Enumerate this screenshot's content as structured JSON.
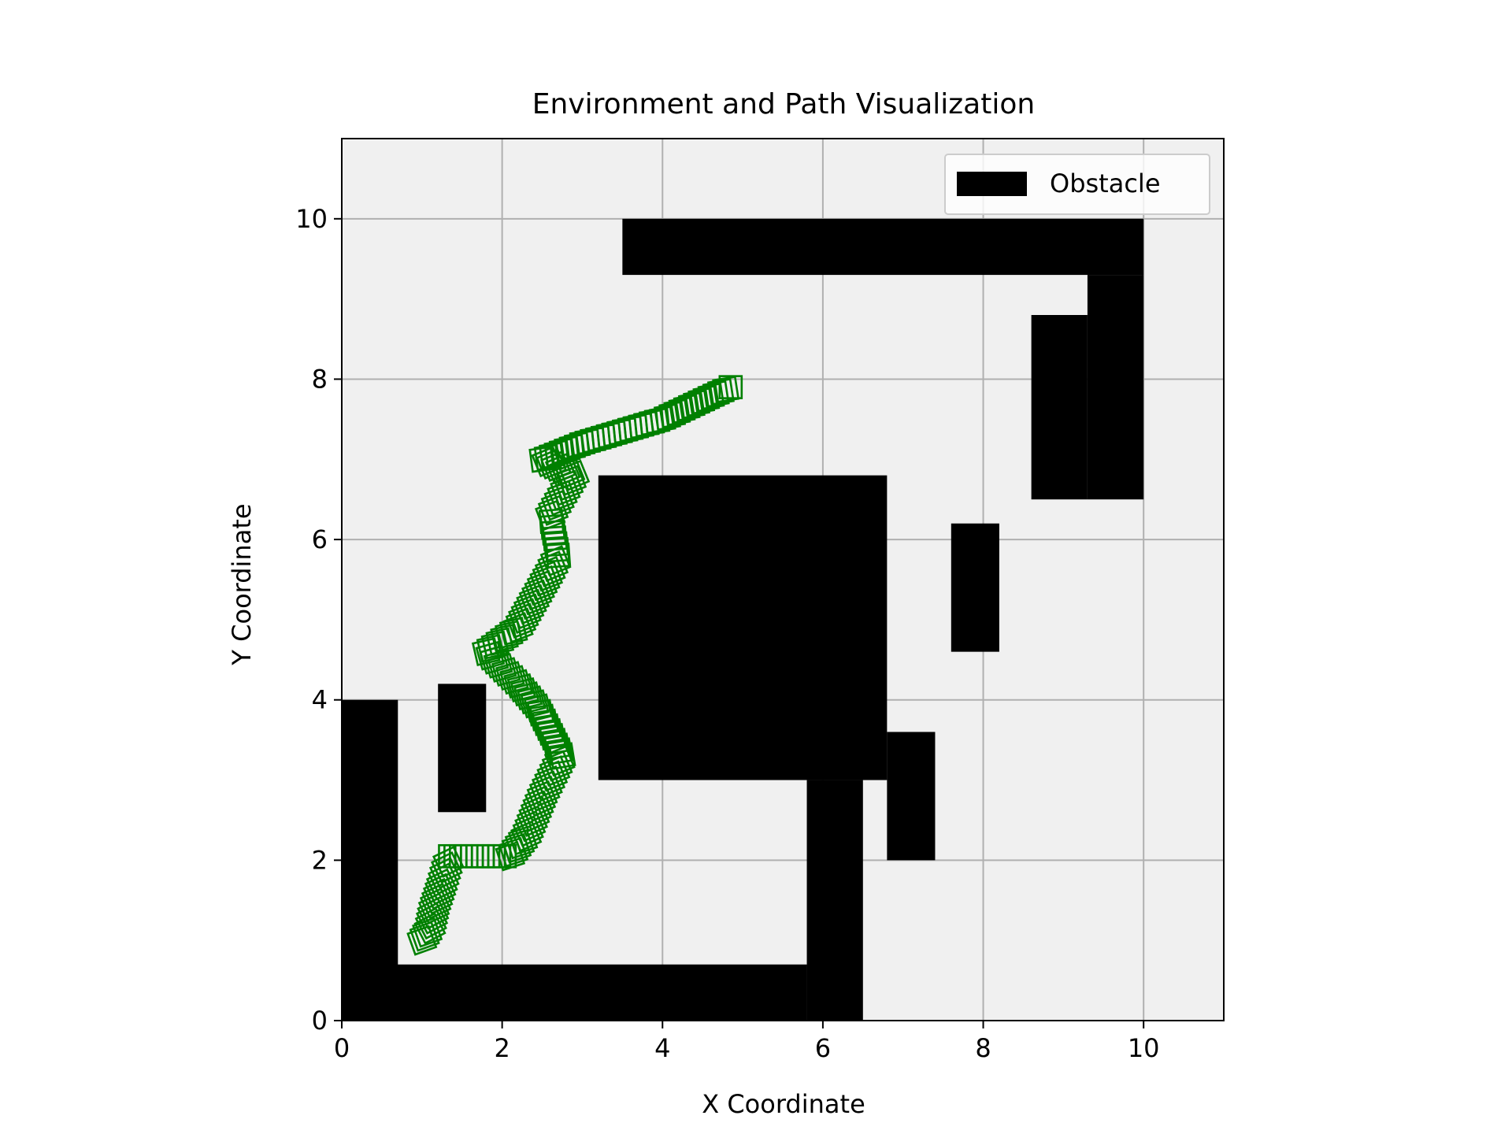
{
  "colors": {
    "figure_bg": "#ffffff",
    "plot_bg": "#f0f0f0",
    "grid": "#b0b0b0",
    "obstacle": "#000000",
    "path": "#008000",
    "axis": "#000000"
  },
  "chart_data": {
    "type": "scatter",
    "title": "Environment and Path Visualization",
    "xlabel": "X Coordinate",
    "ylabel": "Y Coordinate",
    "xlim": [
      0,
      11
    ],
    "ylim": [
      0,
      11
    ],
    "xticks": [
      0,
      2,
      4,
      6,
      8,
      10
    ],
    "yticks": [
      0,
      2,
      4,
      6,
      8,
      10
    ],
    "xtick_labels": [
      "0",
      "2",
      "4",
      "6",
      "8",
      "10"
    ],
    "ytick_labels": [
      "0",
      "2",
      "4",
      "6",
      "8",
      "10"
    ],
    "grid": true,
    "legend": {
      "position": "top-right",
      "entries": [
        {
          "label": "Obstacle",
          "color": "#000000",
          "marker": "rectangle"
        }
      ]
    },
    "obstacles": [
      {
        "x0": 3.5,
        "y0": 9.3,
        "x1": 10.0,
        "y1": 10.0
      },
      {
        "x0": 9.3,
        "y0": 6.5,
        "x1": 10.0,
        "y1": 9.3
      },
      {
        "x0": 8.6,
        "y0": 6.5,
        "x1": 9.3,
        "y1": 8.8
      },
      {
        "x0": 3.2,
        "y0": 3.0,
        "x1": 6.8,
        "y1": 6.8
      },
      {
        "x0": 5.8,
        "y0": 0.0,
        "x1": 6.5,
        "y1": 3.0
      },
      {
        "x0": 6.8,
        "y0": 2.0,
        "x1": 7.4,
        "y1": 3.6
      },
      {
        "x0": 7.6,
        "y0": 4.6,
        "x1": 8.2,
        "y1": 6.2
      },
      {
        "x0": 1.2,
        "y0": 2.6,
        "x1": 1.8,
        "y1": 4.2
      },
      {
        "x0": 0.0,
        "y0": 0.0,
        "x1": 0.7,
        "y1": 4.0
      },
      {
        "x0": 0.0,
        "y0": 0.0,
        "x1": 5.8,
        "y1": 0.7
      }
    ],
    "path": {
      "marker": "square-open",
      "color": "#008000",
      "waypoints": [
        [
          1.0,
          1.0
        ],
        [
          1.1,
          1.15
        ],
        [
          1.15,
          1.4
        ],
        [
          1.25,
          1.7
        ],
        [
          1.35,
          2.05
        ],
        [
          2.1,
          2.05
        ],
        [
          2.3,
          2.3
        ],
        [
          2.5,
          2.8
        ],
        [
          2.75,
          3.3
        ],
        [
          2.45,
          3.9
        ],
        [
          2.2,
          4.2
        ],
        [
          2.0,
          4.4
        ],
        [
          1.8,
          4.6
        ],
        [
          2.2,
          4.9
        ],
        [
          2.6,
          5.6
        ],
        [
          2.7,
          5.8
        ],
        [
          2.6,
          6.3
        ],
        [
          2.9,
          6.8
        ],
        [
          2.5,
          7.0
        ],
        [
          3.0,
          7.2
        ],
        [
          4.0,
          7.5
        ],
        [
          4.85,
          7.9
        ]
      ]
    }
  }
}
